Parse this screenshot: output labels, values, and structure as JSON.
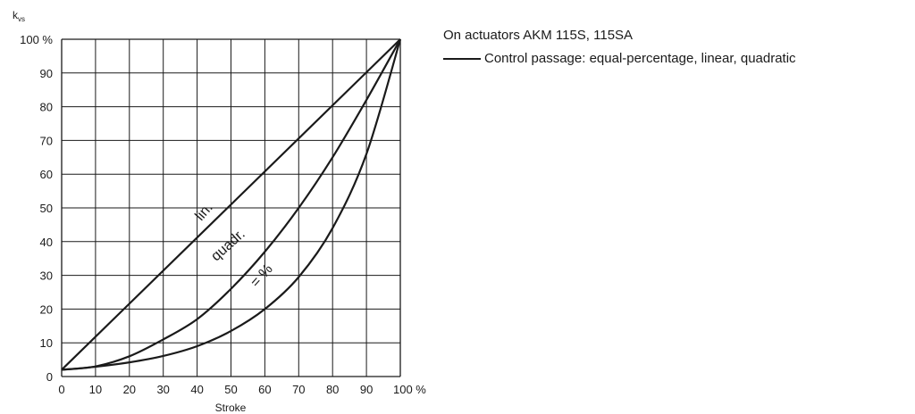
{
  "header": {
    "title": "On actuators AKM 115S, 115SA",
    "legend_label": "Control passage: equal-percentage, linear, quadratic"
  },
  "chart_data": {
    "type": "line",
    "ylabel_main": "k",
    "ylabel_sub": "vs",
    "xlabel": "Stroke",
    "xlim": [
      0,
      100
    ],
    "ylim": [
      0,
      100
    ],
    "x_ticks": [
      "0",
      "10",
      "20",
      "30",
      "40",
      "50",
      "60",
      "70",
      "80",
      "90",
      "100 %"
    ],
    "y_ticks": [
      "0",
      "10",
      "20",
      "30",
      "40",
      "50",
      "60",
      "70",
      "80",
      "90",
      "100 %"
    ],
    "grid": true,
    "series": [
      {
        "name": "lin.",
        "x": [
          0,
          100
        ],
        "y": [
          2,
          100
        ]
      },
      {
        "name": "quadr.",
        "x": [
          0,
          10,
          20,
          30,
          40,
          50,
          60,
          70,
          80,
          90,
          100
        ],
        "y": [
          2,
          3,
          6,
          11,
          17,
          26,
          37,
          50,
          65,
          82,
          100
        ]
      },
      {
        "name": "= %",
        "x": [
          0,
          10,
          20,
          30,
          40,
          50,
          60,
          70,
          80,
          90,
          100
        ],
        "y": [
          2,
          2.9,
          4.2,
          6.1,
          9,
          13.5,
          20,
          29.5,
          44,
          66,
          100
        ]
      }
    ],
    "label_anchor": [
      {
        "x": 43,
        "y": 48,
        "angle": -49
      },
      {
        "x": 50,
        "y": 38,
        "angle": -42
      },
      {
        "x": 60,
        "y": 29,
        "angle": -48
      }
    ],
    "colors": {
      "line": "#1a1a1a",
      "grid": "#1a1a1a"
    }
  }
}
